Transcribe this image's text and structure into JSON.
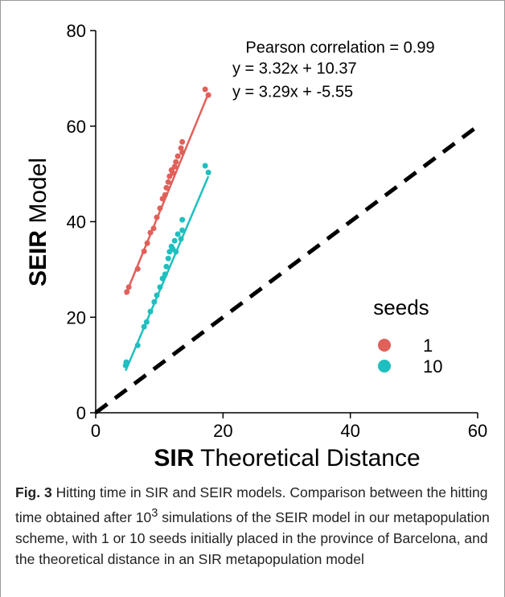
{
  "chart_data": {
    "type": "scatter",
    "x_label_bold": "SIR",
    "x_label": "Theoretical Distance",
    "y_label_bold": "SEIR",
    "y_label": "Model",
    "annotations": [
      "Pearson correlation = 0.99",
      "y = 3.32x + 10.37",
      "y = 3.29x + -5.55"
    ],
    "legend_title": "seeds",
    "xlim": [
      0,
      60
    ],
    "xticks": [
      0,
      20,
      40,
      60
    ],
    "ylim": [
      0,
      80
    ],
    "yticks": [
      0,
      20,
      40,
      60,
      80
    ],
    "reference_line": {
      "x": [
        0,
        60
      ],
      "values": [
        0,
        60
      ],
      "color": "#000000"
    },
    "series": [
      {
        "name": "1",
        "color": "#e0605a",
        "x": [
          4.9,
          5.2,
          6.6,
          7.6,
          8.1,
          8.6,
          9.1,
          9.6,
          10.1,
          10.5,
          10.9,
          11.1,
          11.4,
          11.6,
          11.9,
          12.1,
          12.4,
          12.6,
          12.9,
          13.4,
          13.6,
          13.6,
          17.2,
          17.7
        ],
        "values": [
          25.3,
          26.3,
          30.1,
          33.8,
          35.5,
          37.7,
          38.6,
          40.9,
          42.8,
          44.8,
          45.6,
          47.1,
          48.3,
          49.5,
          50.8,
          50.2,
          51.5,
          52.5,
          53.7,
          55.4,
          56.7,
          54.5,
          67.7,
          66.5
        ],
        "fit_x": [
          4.7,
          17.7
        ],
        "fit_values": [
          24.7,
          66.8
        ]
      },
      {
        "name": "10",
        "color": "#1fbfbf",
        "x": [
          4.8,
          4.7,
          6.6,
          7.6,
          8.0,
          8.6,
          9.2,
          9.6,
          10.1,
          10.5,
          10.9,
          11.1,
          11.4,
          11.6,
          11.9,
          12.1,
          12.4,
          12.6,
          12.9,
          13.4,
          13.6,
          13.6,
          17.2,
          17.7
        ],
        "values": [
          10.6,
          9.9,
          14.1,
          18.0,
          19.0,
          21.2,
          23.2,
          24.6,
          26.3,
          28.1,
          29.0,
          30.6,
          32.3,
          33.7,
          34.8,
          34.3,
          36.0,
          33.7,
          37.4,
          36.4,
          40.4,
          38.2,
          51.7,
          50.3
        ],
        "fit_x": [
          4.7,
          17.7
        ],
        "fit_values": [
          8.8,
          49.5
        ]
      }
    ]
  },
  "caption": {
    "label": "Fig. 3",
    "text_before": "Hitting time in SIR and SEIR models. Comparison between the hitting time obtained after 10",
    "superscript": "3",
    "text_after": "simulations of the SEIR model in our metapopulation scheme, with 1 or 10 seeds initially placed in the province of Barcelona, and the theoretical distance in an SIR metapopulation model"
  }
}
